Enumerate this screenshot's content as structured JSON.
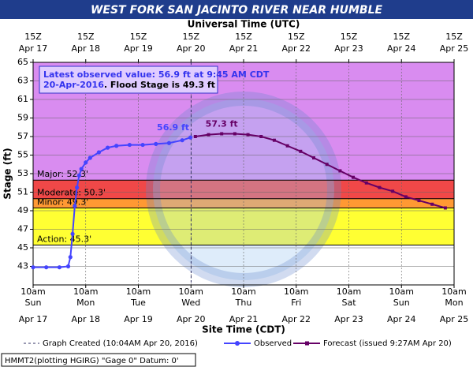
{
  "chart_data": {
    "type": "line",
    "title": "WEST FORK SAN JACINTO RIVER NEAR HUMBLE",
    "x2_label": "Universal Time (UTC)",
    "x_label": "Site Time (CDT)",
    "y_label": "Stage (ft)",
    "xlim": [
      "2016-04-17T10:00-05:00",
      "2016-04-25T10:00-05:00"
    ],
    "ylim": [
      41,
      65
    ],
    "yticks": [
      43,
      45,
      47,
      49,
      51,
      53,
      55,
      57,
      59,
      61,
      63,
      65
    ],
    "grid": true,
    "xticks": [
      {
        "value": "2016-04-17T10:00-05:00",
        "label": "10am",
        "day": "Sun",
        "date": "Apr 17"
      },
      {
        "value": "2016-04-18T10:00-05:00",
        "label": "10am",
        "day": "Mon",
        "date": "Apr 18"
      },
      {
        "value": "2016-04-19T10:00-05:00",
        "label": "10am",
        "day": "Tue",
        "date": "Apr 19"
      },
      {
        "value": "2016-04-20T10:00-05:00",
        "label": "10am",
        "day": "Wed",
        "date": "Apr 20"
      },
      {
        "value": "2016-04-21T10:00-05:00",
        "label": "10am",
        "day": "Thu",
        "date": "Apr 21"
      },
      {
        "value": "2016-04-22T10:00-05:00",
        "label": "10am",
        "day": "Fri",
        "date": "Apr 22"
      },
      {
        "value": "2016-04-23T10:00-05:00",
        "label": "10am",
        "day": "Sat",
        "date": "Apr 23"
      },
      {
        "value": "2016-04-24T10:00-05:00",
        "label": "10am",
        "day": "Sun",
        "date": "Apr 24"
      },
      {
        "value": "2016-04-25T10:00-05:00",
        "label": "10am",
        "day": "Mon",
        "date": "Apr 25"
      }
    ],
    "x2ticks": [
      {
        "value": "2016-04-17T15:00Z",
        "label": "15Z",
        "date": "Apr 17"
      },
      {
        "value": "2016-04-18T15:00Z",
        "label": "15Z",
        "date": "Apr 18"
      },
      {
        "value": "2016-04-19T15:00Z",
        "label": "15Z",
        "date": "Apr 19"
      },
      {
        "value": "2016-04-20T15:00Z",
        "label": "15Z",
        "date": "Apr 20"
      },
      {
        "value": "2016-04-21T15:00Z",
        "label": "15Z",
        "date": "Apr 21"
      },
      {
        "value": "2016-04-22T15:00Z",
        "label": "15Z",
        "date": "Apr 22"
      },
      {
        "value": "2016-04-23T15:00Z",
        "label": "15Z",
        "date": "Apr 23"
      },
      {
        "value": "2016-04-24T15:00Z",
        "label": "15Z",
        "date": "Apr 24"
      },
      {
        "value": "2016-04-25T15:00Z",
        "label": "15Z",
        "date": "Apr 25"
      }
    ],
    "flood_categories": [
      {
        "label": "Major: 52.3'",
        "value": 52.3,
        "color": "#d98cf0"
      },
      {
        "label": "Moderate: 50.3'",
        "value": 50.3,
        "color": "#f04848"
      },
      {
        "label": "Minor: 49.3'",
        "value": 49.3,
        "color": "#ff9933"
      },
      {
        "label": "Action: 45.3'",
        "value": 45.3,
        "color": "#ffff33"
      }
    ],
    "graph_created": {
      "label": "Graph Created (10:04AM Apr 20, 2016)",
      "x": "2016-04-20T10:04-05:00"
    },
    "annotation": {
      "line1": "Latest observed value: 56.9 ft at 9:45 AM CDT",
      "line2_date": "20-Apr-2016",
      "line2_rest": ". Flood Stage is 49.3 ft"
    },
    "series": [
      {
        "name": "Observed",
        "color": "#4444ff",
        "x": [
          "2016-04-17T10:00-05:00",
          "2016-04-17T16:00-05:00",
          "2016-04-17T22:00-05:00",
          "2016-04-18T02:00-05:00",
          "2016-04-18T03:00-05:00",
          "2016-04-18T04:00-05:00",
          "2016-04-18T05:00-05:00",
          "2016-04-18T06:00-05:00",
          "2016-04-18T07:00-05:00",
          "2016-04-18T08:00-05:00",
          "2016-04-18T10:00-05:00",
          "2016-04-18T12:00-05:00",
          "2016-04-18T16:00-05:00",
          "2016-04-18T20:00-05:00",
          "2016-04-19T00:00-05:00",
          "2016-04-19T06:00-05:00",
          "2016-04-19T12:00-05:00",
          "2016-04-19T18:00-05:00",
          "2016-04-20T00:00-05:00",
          "2016-04-20T06:00-05:00",
          "2016-04-20T09:45-05:00"
        ],
        "values": [
          42.9,
          42.9,
          42.9,
          43.0,
          44.0,
          46.5,
          49.5,
          51.5,
          52.8,
          53.5,
          54.2,
          54.7,
          55.3,
          55.8,
          56.0,
          56.1,
          56.1,
          56.2,
          56.3,
          56.6,
          56.9
        ],
        "value_labels": [
          null,
          null,
          null,
          null,
          null,
          null,
          null,
          null,
          null,
          null,
          null,
          null,
          null,
          null,
          null,
          null,
          null,
          null,
          null,
          null,
          "56.9 ft"
        ]
      },
      {
        "name": "Forecast (issued 9:27AM Apr 20)",
        "color": "#660066",
        "x": [
          "2016-04-20T12:00-05:00",
          "2016-04-20T18:00-05:00",
          "2016-04-21T00:00-05:00",
          "2016-04-21T06:00-05:00",
          "2016-04-21T12:00-05:00",
          "2016-04-21T18:00-05:00",
          "2016-04-22T00:00-05:00",
          "2016-04-22T06:00-05:00",
          "2016-04-22T12:00-05:00",
          "2016-04-22T18:00-05:00",
          "2016-04-23T00:00-05:00",
          "2016-04-23T06:00-05:00",
          "2016-04-23T12:00-05:00",
          "2016-04-23T18:00-05:00",
          "2016-04-24T00:00-05:00",
          "2016-04-24T06:00-05:00",
          "2016-04-24T12:00-05:00",
          "2016-04-24T18:00-05:00",
          "2016-04-25T00:00-05:00",
          "2016-04-25T06:00-05:00"
        ],
        "values": [
          57.0,
          57.2,
          57.3,
          57.3,
          57.2,
          57.0,
          56.6,
          56.0,
          55.4,
          54.7,
          54.0,
          53.3,
          52.6,
          52.0,
          51.5,
          51.1,
          50.5,
          50.1,
          49.7,
          49.3
        ],
        "value_labels": [
          null,
          null,
          "57.3 ft",
          null,
          null,
          null,
          null,
          null,
          null,
          null,
          null,
          null,
          null,
          null,
          null,
          null,
          null,
          null,
          null,
          null
        ]
      }
    ],
    "legend_observed": "Observed",
    "footer": "HMMT2(plotting HGIRG) \"Gage 0\" Datum: 0'"
  }
}
